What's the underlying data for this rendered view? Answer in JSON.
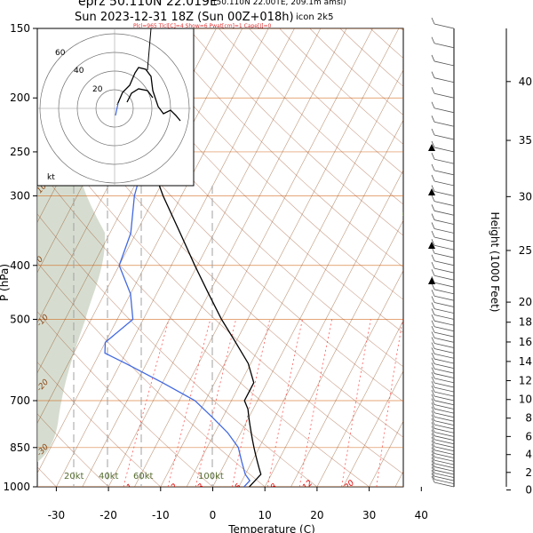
{
  "title": {
    "line1": "eprz 50.110N 22.019E",
    "line1_small": "(50.110N 22.00TE, 209.1m amsl)",
    "line2": "Sun 2023-12-31 18Z (Sun 00Z+018h)",
    "model": "icon 2k5",
    "indices": "Plcl=965 Tlcl[C]=4 Show=6 Pwat[cm]=1 Cape[J]=0"
  },
  "colors": {
    "temperature": "#000000",
    "dewpoint": "#4169e1",
    "isotherm": "#8b4513",
    "dry_adiabat": "#a0522d",
    "mixing_ratio": "#ff3030",
    "moist_adiabat": "#ff6060",
    "isobar": "#d2691e",
    "terrain_shade": "#c8d2c0",
    "green_label": "#556b2f"
  },
  "chart_data": {
    "type": "line",
    "diagram": "skew-T log-P",
    "xlabel": "Temperature (C)",
    "ylabel": "P (hPa)",
    "ylabel_right": "Height (1000 Feet)",
    "xlim": [
      -33,
      47
    ],
    "pressure_range": [
      1000,
      150
    ],
    "pressure_scale": "log",
    "x_ticks": [
      -30,
      -20,
      -10,
      0,
      10,
      20,
      30,
      40
    ],
    "pressure_ticks": [
      150,
      200,
      250,
      300,
      400,
      500,
      700,
      850,
      1000
    ],
    "height_ticks_kft": [
      0,
      2,
      4,
      6,
      8,
      10,
      12,
      14,
      16,
      18,
      20,
      25,
      30,
      35,
      40
    ],
    "isotherm_labels": [
      -20,
      -10,
      0,
      10,
      20,
      30
    ],
    "left_isotherm_labels": [
      10,
      0,
      -10,
      -20,
      -30
    ],
    "mixing_ratio_labels": [
      1,
      2,
      3,
      5,
      8,
      12,
      20
    ],
    "wind_speed_labels": [
      "20kt",
      "40kt",
      "60kt",
      "100kt"
    ],
    "series": [
      {
        "name": "temperature",
        "points": [
          [
            1000,
            7
          ],
          [
            975,
            7.5
          ],
          [
            950,
            8
          ],
          [
            925,
            7
          ],
          [
            900,
            6
          ],
          [
            875,
            5
          ],
          [
            850,
            4
          ],
          [
            825,
            3
          ],
          [
            800,
            2
          ],
          [
            775,
            1
          ],
          [
            750,
            0
          ],
          [
            725,
            -1
          ],
          [
            700,
            -2.5
          ],
          [
            675,
            -2.5
          ],
          [
            650,
            -2.5
          ],
          [
            600,
            -5.5
          ],
          [
            550,
            -10
          ],
          [
            500,
            -15
          ],
          [
            450,
            -20
          ],
          [
            400,
            -25.5
          ],
          [
            350,
            -31.5
          ],
          [
            300,
            -38.5
          ],
          [
            250,
            -46
          ],
          [
            225,
            -50
          ],
          [
            200,
            -53.5
          ],
          [
            175,
            -57
          ],
          [
            150,
            -60
          ]
        ]
      },
      {
        "name": "dewpoint",
        "points": [
          [
            1000,
            6
          ],
          [
            975,
            6.5
          ],
          [
            950,
            5
          ],
          [
            900,
            3
          ],
          [
            850,
            1
          ],
          [
            800,
            -2.5
          ],
          [
            750,
            -7
          ],
          [
            700,
            -12
          ],
          [
            650,
            -20
          ],
          [
            600,
            -29
          ],
          [
            575,
            -34
          ],
          [
            550,
            -35
          ],
          [
            500,
            -32
          ],
          [
            450,
            -35
          ],
          [
            400,
            -40
          ],
          [
            350,
            -41
          ],
          [
            300,
            -44
          ],
          [
            275,
            -45
          ],
          [
            250,
            -50
          ],
          [
            225,
            -59
          ],
          [
            200,
            -64
          ],
          [
            180,
            -65
          ],
          [
            150,
            -72
          ]
        ]
      }
    ]
  }
}
